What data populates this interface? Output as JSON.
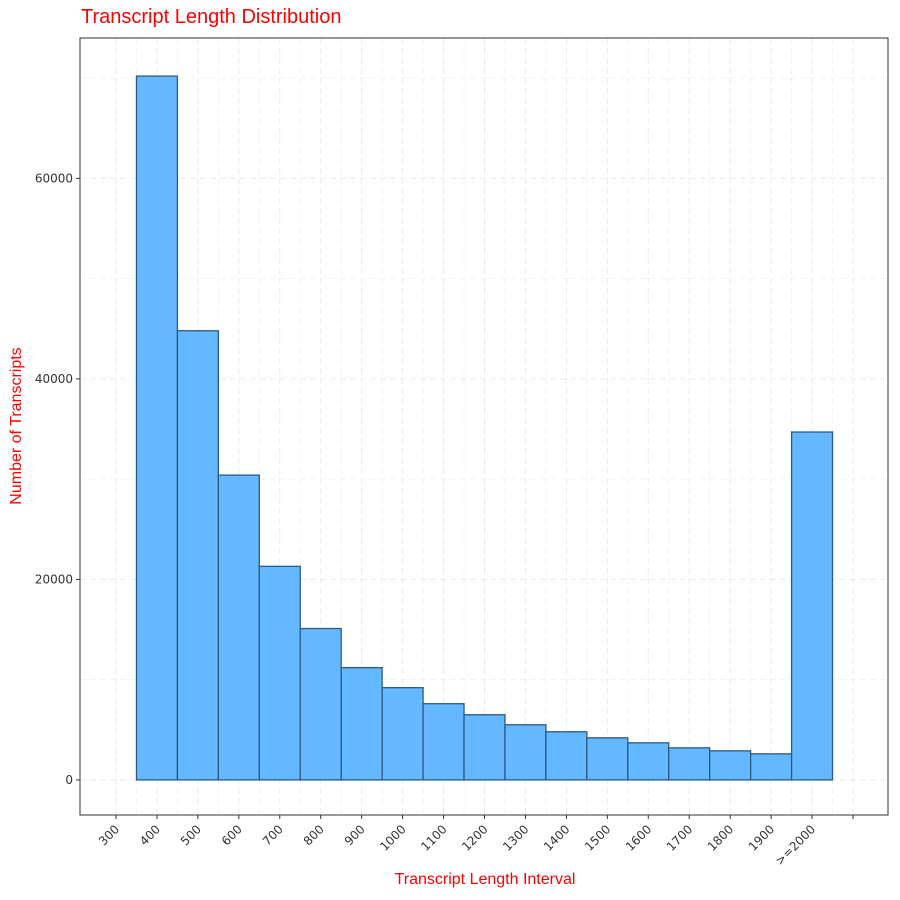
{
  "chart_data": {
    "type": "bar",
    "title": "Transcript Length Distribution",
    "xlabel": "Transcript Length Interval",
    "ylabel": "Number of Transcripts",
    "x_tick_labels": [
      "300",
      "400",
      "500",
      "600",
      "700",
      "800",
      "900",
      "1000",
      "1100",
      "1200",
      "1300",
      "1400",
      "1500",
      "1600",
      "1700",
      "1800",
      "1900",
      ">=2000"
    ],
    "categories": [
      "400",
      "500",
      "600",
      "700",
      "800",
      "900",
      "1000",
      "1100",
      "1200",
      "1300",
      "1400",
      "1500",
      "1600",
      "1700",
      "1800",
      "1900",
      ">=2000"
    ],
    "values": [
      70200,
      44800,
      30400,
      21300,
      15100,
      11200,
      9200,
      7600,
      6500,
      5500,
      4800,
      4200,
      3700,
      3200,
      2900,
      2600,
      34700
    ],
    "y_ticks": [
      0,
      20000,
      40000,
      60000
    ],
    "ylim": [
      -3500,
      74000
    ],
    "grid": true,
    "grid_style": "dashed",
    "colors": {
      "bar_fill": "#63b8ff",
      "bar_stroke": "#2c5a80",
      "title": "#ff0000",
      "axis_labels": "#ff0000",
      "grid": "#ebebeb"
    }
  }
}
